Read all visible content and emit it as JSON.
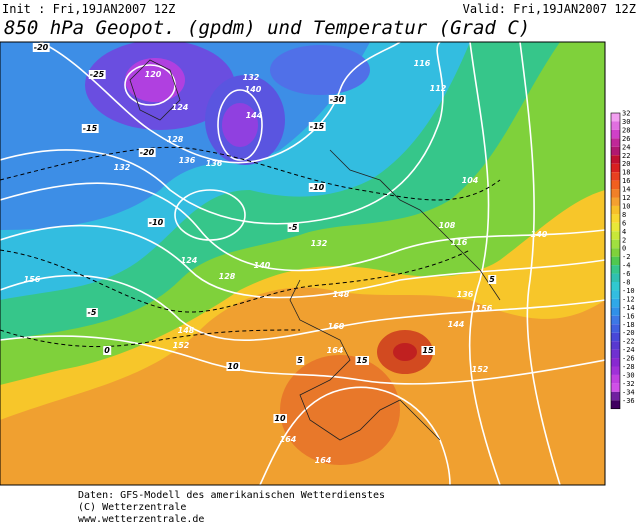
{
  "header": {
    "init": "Init : Fri,19JAN2007 12Z",
    "valid": "Valid: Fri,19JAN2007 12Z",
    "title": "850 hPa Geopot. (gpdm) und Temperatur (Grad C)"
  },
  "legend": {
    "labels": [
      32,
      30,
      28,
      26,
      24,
      22,
      20,
      18,
      16,
      14,
      12,
      10,
      8,
      6,
      4,
      2,
      0,
      -2,
      -4,
      -6,
      -8,
      -10,
      -12,
      -14,
      -16,
      -18,
      -20,
      -22,
      -24,
      -26,
      -28,
      -30,
      -32,
      -34,
      -36
    ]
  },
  "map": {
    "contour_labels": [
      "120",
      "124",
      "128",
      "132",
      "136",
      "140",
      "144",
      "132",
      "136",
      "140",
      "116",
      "112",
      "104",
      "108",
      "116",
      "124",
      "128",
      "132",
      "136",
      "140",
      "144",
      "148",
      "152",
      "156",
      "160",
      "164",
      "164",
      "164",
      "156",
      "148",
      "152",
      "-20",
      "-25",
      "-15",
      "-10",
      "-5",
      "0",
      "5",
      "10",
      "15",
      "-30",
      "-20",
      "-15",
      "-10",
      "-5",
      "10",
      "15",
      "5"
    ]
  },
  "footer": {
    "line1": "Daten: GFS-Modell des amerikanischen Wetterdienstes",
    "line2": "(C) Wetterzentrale",
    "line3": "www.wetterzentrale.de"
  }
}
